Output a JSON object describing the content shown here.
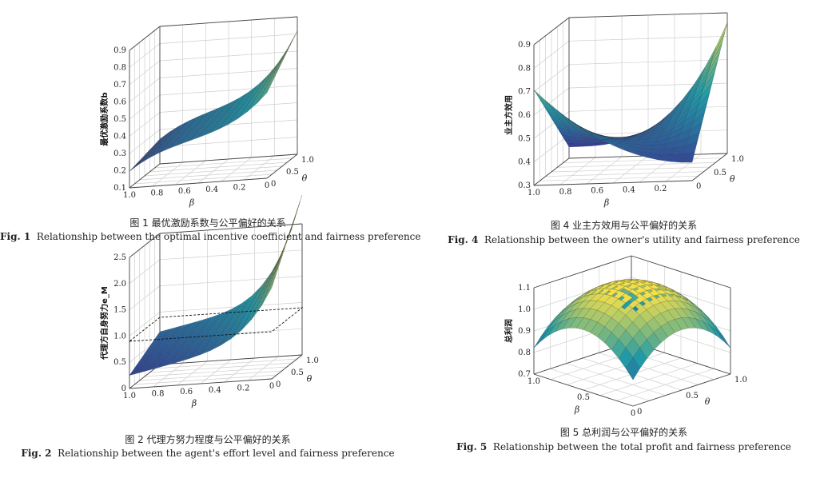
{
  "figures": [
    {
      "id": "fig1",
      "zlabel": "最优激励系数b",
      "x_label": "β",
      "y_label": "θ",
      "z_ticks": [
        "0.1",
        "0.2",
        "0.3",
        "0.4",
        "0.5",
        "0.6",
        "0.7",
        "0.8",
        "0.9"
      ],
      "x_ticks": [
        "1.0",
        "0.8",
        "0.6",
        "0.4",
        "0.2",
        "0"
      ],
      "y_ticks": [
        "0",
        "0.5",
        "1.0"
      ],
      "caption_zh": "图 1  最优激励系数与公平偏好的关系",
      "caption_en_num": "Fig. 1",
      "caption_en": "Relationship between the optimal incentive coefficient and fairness preference"
    },
    {
      "id": "fig2",
      "zlabel": "代理方自身努力e_M",
      "x_label": "β",
      "y_label": "θ",
      "z_ticks": [
        "0",
        "0.5",
        "1.0",
        "1.5",
        "2.0",
        "2.5"
      ],
      "x_ticks": [
        "1.0",
        "0.8",
        "0.6",
        "0.4",
        "0.2",
        "0"
      ],
      "y_ticks": [
        "0",
        "0.5",
        "1.0"
      ],
      "caption_zh": "图 2  代理方努力程度与公平偏好的关系",
      "caption_en_num": "Fig. 2",
      "caption_en": "Relationship between the agent's effort level and fairness preference"
    },
    {
      "id": "fig4",
      "zlabel": "业主方效用",
      "x_label": "β",
      "y_label": "θ",
      "z_ticks": [
        "0.3",
        "0.4",
        "0.5",
        "0.6",
        "0.7",
        "0.8",
        "0.9"
      ],
      "x_ticks": [
        "1.0",
        "0.8",
        "0.6",
        "0.4",
        "0.2"
      ],
      "y_ticks": [
        "0",
        "0.5",
        "1.0"
      ],
      "caption_zh": "图 4  业主方效用与公平偏好的关系",
      "caption_en_num": "Fig. 4",
      "caption_en": "Relationship between the owner's utility and fairness preference"
    },
    {
      "id": "fig5",
      "zlabel": "总利润",
      "x_label": "β",
      "y_label": "θ",
      "z_ticks": [
        "0.7",
        "0.8",
        "0.9",
        "1.0",
        "1.1"
      ],
      "x_ticks": [
        "1.0",
        "0.5",
        "0"
      ],
      "y_ticks": [
        "0",
        "0.5",
        "1.0"
      ],
      "caption_zh": "图 5  总利润与公平偏好的关系",
      "caption_en_num": "Fig. 5",
      "caption_en": "Relationship between the total profit and fairness preference"
    }
  ],
  "colors": {
    "low": "#3b2a8c",
    "mid": "#1f9aa8",
    "high": "#f5e04a",
    "grid": "#cfcfcf",
    "axis": "#444444"
  }
}
